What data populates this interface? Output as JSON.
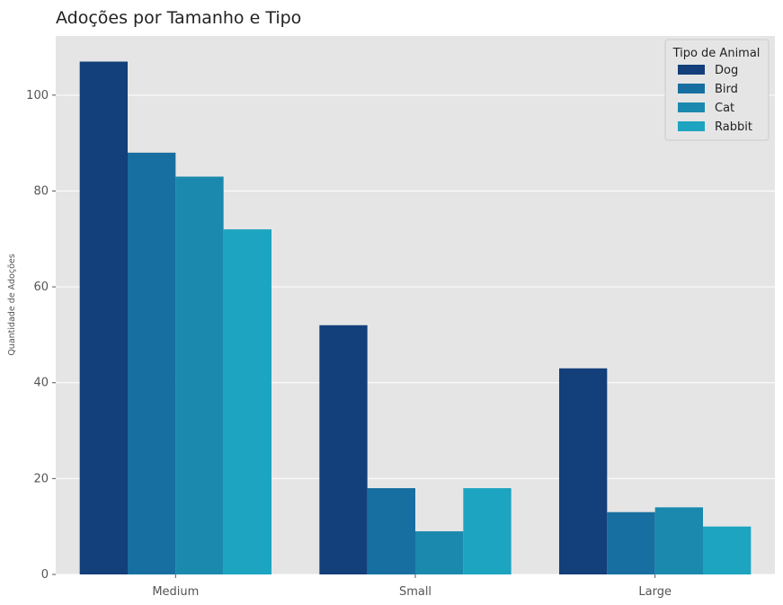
{
  "chart_data": {
    "type": "bar",
    "title": "Adoções por Tamanho e Tipo",
    "xlabel": "",
    "ylabel": "Quantidade de Adoções",
    "categories": [
      "Medium",
      "Small",
      "Large"
    ],
    "series": [
      {
        "name": "Dog",
        "values": [
          107,
          52,
          43
        ],
        "color": "#133f7a"
      },
      {
        "name": "Bird",
        "values": [
          88,
          18,
          13
        ],
        "color": "#176ea0"
      },
      {
        "name": "Cat",
        "values": [
          83,
          9,
          14
        ],
        "color": "#1b89ae"
      },
      {
        "name": "Rabbit",
        "values": [
          72,
          18,
          10
        ],
        "color": "#1da4c0"
      }
    ],
    "ylim": [
      0,
      112.35
    ],
    "yticks": [
      0,
      20,
      40,
      60,
      80,
      100
    ],
    "legend": {
      "title": "Tipo de Animal",
      "position": "top-right"
    },
    "grid": true,
    "style": "ggplot"
  }
}
